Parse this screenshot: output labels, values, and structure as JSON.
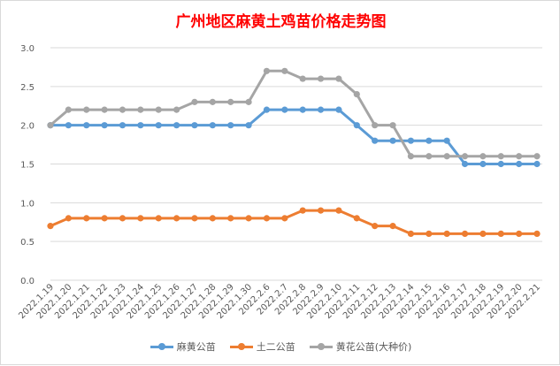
{
  "chart_data": {
    "type": "line",
    "title": "广州地区麻黄土鸡苗价格走势图",
    "xlabel": "",
    "ylabel": "",
    "ylim": [
      0,
      3
    ],
    "yticks": [
      "0.0",
      "0.5",
      "1.0",
      "1.5",
      "2.0",
      "2.5",
      "3.0"
    ],
    "grid": true,
    "legend_position": "bottom",
    "categories": [
      "2022.1.19",
      "2022.1.20",
      "2022.1.21",
      "2022.1.22",
      "2022.1.23",
      "2022.1.24",
      "2022.1.25",
      "2022.1.26",
      "2022.1.27",
      "2022.1.28",
      "2022.1.29",
      "2022.1.30",
      "2022.2.6",
      "2022.2.7",
      "2022.2.8",
      "2022.2.9",
      "2022.2.10",
      "2022.2.11",
      "2022.2.12",
      "2022.2.13",
      "2022.2.14",
      "2022.2.15",
      "2022.2.16",
      "2022.2.17",
      "2022.2.18",
      "2022.2.19",
      "2022.2.20",
      "2022.2.21"
    ],
    "series": [
      {
        "name": "麻黄公苗",
        "color": "#5b9bd5",
        "values": [
          2.0,
          2.0,
          2.0,
          2.0,
          2.0,
          2.0,
          2.0,
          2.0,
          2.0,
          2.0,
          2.0,
          2.0,
          2.2,
          2.2,
          2.2,
          2.2,
          2.2,
          2.0,
          1.8,
          1.8,
          1.8,
          1.8,
          1.8,
          1.5,
          1.5,
          1.5,
          1.5,
          1.5
        ]
      },
      {
        "name": "土二公苗",
        "color": "#ed7d31",
        "values": [
          0.7,
          0.8,
          0.8,
          0.8,
          0.8,
          0.8,
          0.8,
          0.8,
          0.8,
          0.8,
          0.8,
          0.8,
          0.8,
          0.8,
          0.9,
          0.9,
          0.9,
          0.8,
          0.7,
          0.7,
          0.6,
          0.6,
          0.6,
          0.6,
          0.6,
          0.6,
          0.6,
          0.6
        ]
      },
      {
        "name": "黄花公苗(大种价)",
        "color": "#a5a5a5",
        "values": [
          2.0,
          2.2,
          2.2,
          2.2,
          2.2,
          2.2,
          2.2,
          2.2,
          2.3,
          2.3,
          2.3,
          2.3,
          2.7,
          2.7,
          2.6,
          2.6,
          2.6,
          2.4,
          2.0,
          2.0,
          1.6,
          1.6,
          1.6,
          1.6,
          1.6,
          1.6,
          1.6,
          1.6
        ]
      }
    ]
  }
}
